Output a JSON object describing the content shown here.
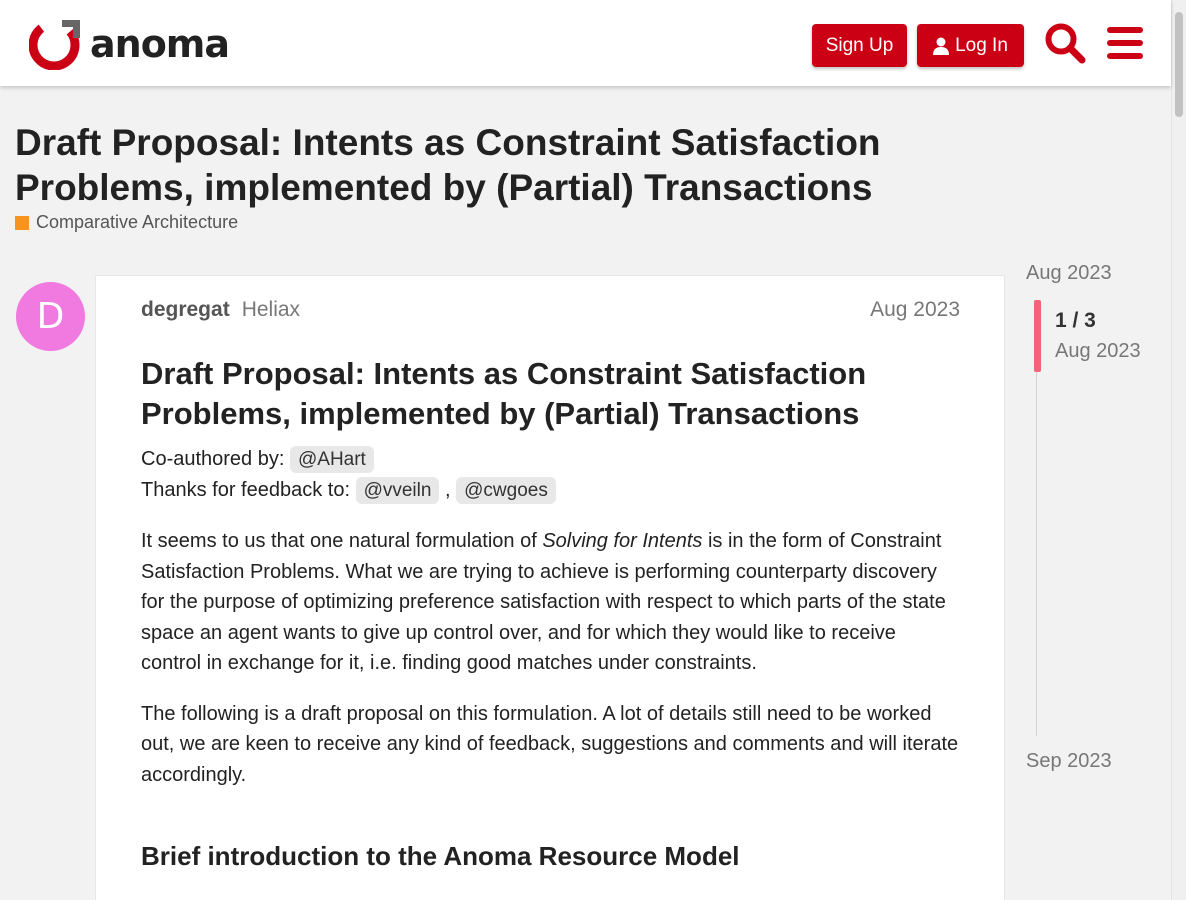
{
  "header": {
    "brand": "anoma",
    "signup_label": "Sign Up",
    "login_label": "Log In",
    "accent_color": "#cc0014",
    "icons": [
      "search-icon",
      "menu-icon",
      "user-icon"
    ]
  },
  "topic": {
    "title": "Draft Proposal: Intents as Constraint Satisfaction Problems, implemented by (Partial) Transactions",
    "category": "Comparative Architecture",
    "category_color": "#f7941d"
  },
  "post": {
    "avatar_letter": "D",
    "avatar_color": "#f07ae0",
    "username": "degregat",
    "user_title": "Heliax",
    "date": "Aug 2023",
    "heading": "Draft Proposal: Intents as Constraint Satisfaction Problems, implemented by (Partial) Transactions",
    "coauthored_label": "Co-authored by:",
    "coauthor": "@AHart",
    "thanks_label": "Thanks for feedback to:",
    "thanks_1": "@vveiln",
    "thanks_sep": ",",
    "thanks_2": "@cwgoes",
    "para1_a": "It seems to us that one natural formulation of ",
    "para1_em": "Solving for Intents",
    "para1_b": " is in the form of Constraint Satisfaction Problems. What we are trying to achieve is performing counterparty discovery for the purpose of optimizing preference satisfaction with respect to which parts of the state space an agent wants to give up control over, and for which they would like to receive control in exchange for it, i.e. finding good matches under constraints.",
    "para2": "The following is a draft proposal on this formulation. A lot of details still need to be worked out, we are keen to receive any kind of feedback, suggestions and comments and will iterate accordingly.",
    "section_heading": "Brief introduction to the Anoma Resource Model"
  },
  "timeline": {
    "start_date": "Aug 2023",
    "position": "1 / 3",
    "current_date": "Aug 2023",
    "end_date": "Sep 2023",
    "handle_color": "#f2647a"
  }
}
